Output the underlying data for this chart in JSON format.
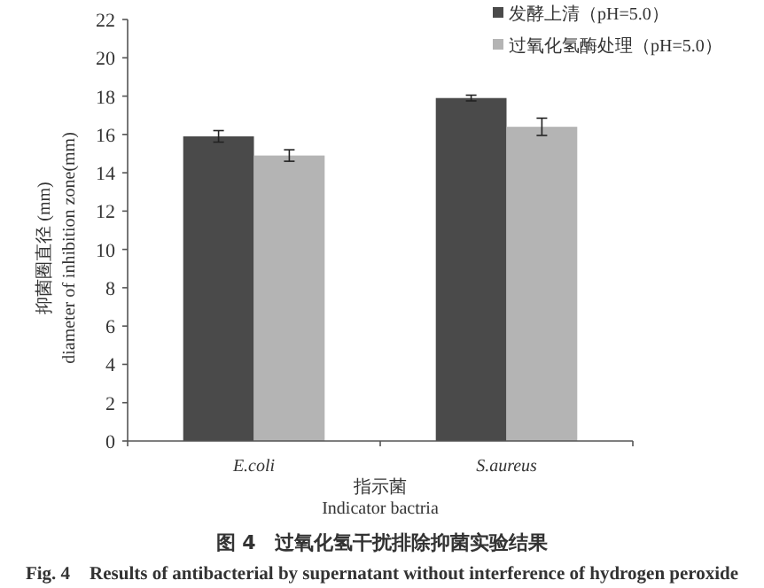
{
  "chart_data": {
    "type": "bar",
    "title": "图 4　过氧化氢干扰排除抑菌实验结果",
    "subtitle": "Fig. 4　Results of antibacterial by supernatant without interference of hydrogen peroxide",
    "xlabel": "指示菌\nIndicator bactria",
    "ylabel": "抑菌圈直径 (mm)\ndiameter of inhibition zone(mm)",
    "categories": [
      "E.coli",
      "S.aureus"
    ],
    "series": [
      {
        "name": "发酵上清（pH=5.0）",
        "color": "#4a4a4a",
        "values": [
          15.9,
          17.9
        ],
        "errors": [
          0.3,
          0.15
        ]
      },
      {
        "name": "过氧化氢酶处理（pH=5.0）",
        "color": "#b4b4b4",
        "values": [
          14.9,
          16.4
        ],
        "errors": [
          0.3,
          0.45
        ]
      }
    ],
    "ylim": [
      0,
      22
    ],
    "yticks": [
      0,
      2,
      4,
      6,
      8,
      10,
      12,
      14,
      16,
      18,
      20,
      22
    ],
    "legend": "top right",
    "grid": false
  }
}
